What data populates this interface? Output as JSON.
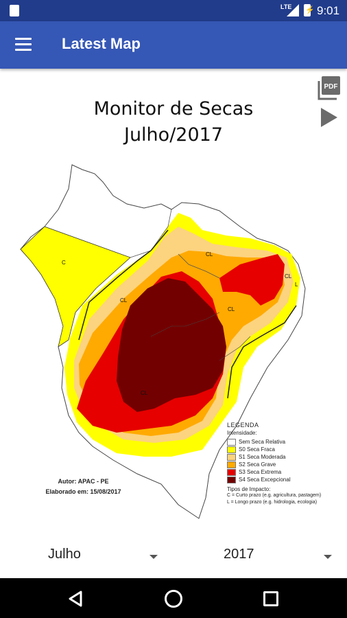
{
  "status_bar": {
    "network": "LTE",
    "time": "9:01"
  },
  "app_bar": {
    "title": "Latest Map"
  },
  "map": {
    "title_line1": "Monitor de Secas",
    "title_line2": "Julho/2017",
    "region_labels": [
      "C",
      "CL",
      "CL",
      "CL",
      "CL",
      "CL",
      "L"
    ],
    "credits": {
      "author": "Autor: APAC - PE",
      "date": "Elaborado em: 15/08/2017"
    }
  },
  "legend": {
    "title": "LEGENDA",
    "intensity_label": "Intensidade:",
    "items": [
      {
        "label": "Sem Seca Relativa",
        "color": "#ffffff"
      },
      {
        "label": "S0 Seca Fraca",
        "color": "#ffff00"
      },
      {
        "label": "S1 Seca Moderada",
        "color": "#fcd37f"
      },
      {
        "label": "S2 Seca Grave",
        "color": "#ffaa00"
      },
      {
        "label": "S3 Seca Extrema",
        "color": "#e60000"
      },
      {
        "label": "S4 Seca Excepcional",
        "color": "#730000"
      }
    ],
    "impact_title": "Tipos de Impacto:",
    "impact_short": "C = Curto prazo (e.g. agricultura, pastagem)",
    "impact_long": "L = Longo prazo (e.g. hidrologia, ecologia)"
  },
  "selectors": {
    "month": "Julho",
    "year": "2017"
  },
  "colors": {
    "status_bar": "#213c8b",
    "app_bar": "#3557b5"
  },
  "icons": [
    "sd-card-icon",
    "signal-icon",
    "battery-icon",
    "menu-icon",
    "pdf-icon",
    "play-icon",
    "back-icon",
    "home-icon",
    "recents-icon"
  ]
}
